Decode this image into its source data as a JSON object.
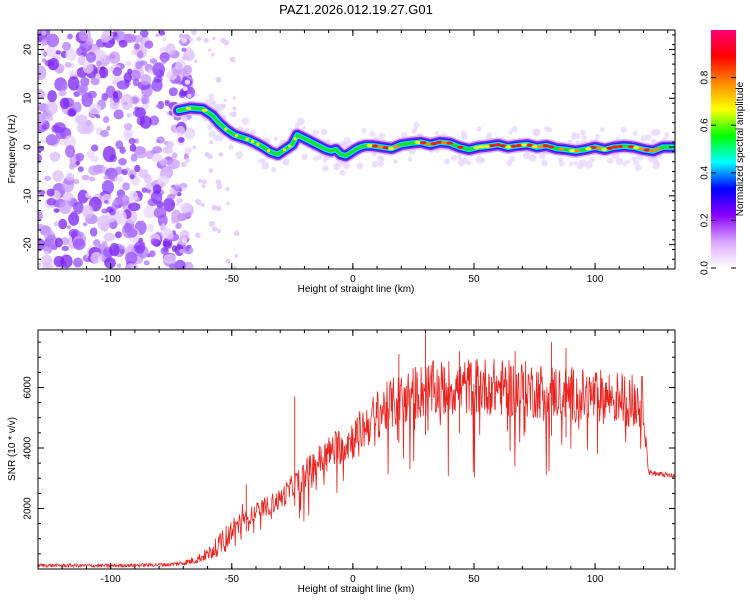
{
  "title": "PAZ1.2026.012.19.27.G01",
  "chart_data": [
    {
      "type": "heatmap",
      "name": "spectrogram",
      "xlabel": "Height of straight line (km)",
      "ylabel": "Frequency (Hz)",
      "xlim": [
        -130,
        133
      ],
      "ylim": [
        -25,
        24
      ],
      "xticks": [
        "-100",
        "-50",
        "0",
        "50",
        "100"
      ],
      "xtick_values": [
        -100,
        -50,
        0,
        50,
        100
      ],
      "yticks": [
        "20",
        "10",
        "0",
        "-10",
        "-20"
      ],
      "ytick_values": [
        20,
        10,
        0,
        -10,
        -20
      ],
      "noise_region_x": [
        -130,
        -70
      ],
      "signal_trace": {
        "x": [
          -72,
          -67,
          -62,
          -58,
          -55,
          -52,
          -49,
          -46,
          -43,
          -40,
          -37,
          -34,
          -31,
          -28,
          -25,
          -23,
          -21,
          -19,
          -17,
          -15,
          -13,
          -11,
          -9,
          -7,
          -5,
          -3,
          -1,
          1,
          3,
          5,
          8,
          12,
          16,
          20,
          24,
          28,
          32,
          36,
          40,
          44,
          48,
          52,
          56,
          60,
          64,
          68,
          72,
          76,
          80,
          84,
          88,
          92,
          96,
          100,
          104,
          108,
          112,
          116,
          120,
          124,
          128,
          132
        ],
        "y": [
          7.5,
          8.0,
          7.8,
          6.5,
          4.8,
          3.5,
          2.5,
          2.0,
          1.5,
          0.8,
          0.0,
          -1.0,
          -1.5,
          -0.5,
          0.5,
          2.5,
          2.0,
          1.5,
          1.0,
          0.5,
          0.0,
          -0.5,
          -0.8,
          -0.5,
          -1.5,
          -1.8,
          -1.2,
          -0.5,
          0.0,
          0.3,
          0.3,
          0.0,
          -0.3,
          0.5,
          0.8,
          1.0,
          0.5,
          1.0,
          0.8,
          0.0,
          -0.5,
          0.0,
          0.2,
          0.5,
          0.0,
          0.3,
          0.5,
          0.0,
          0.3,
          -0.3,
          -0.5,
          -0.8,
          -0.5,
          0.0,
          -0.5,
          0.0,
          0.2,
          0.0,
          -0.5,
          -0.8,
          0.0,
          0.0
        ]
      }
    },
    {
      "type": "line",
      "name": "snr",
      "xlabel": "Height of straight line (km)",
      "ylabel": "SNR (10 * v/v)",
      "xlim": [
        -130,
        133
      ],
      "ylim": [
        0,
        7900
      ],
      "xticks": [
        "-100",
        "-50",
        "0",
        "50",
        "100"
      ],
      "xtick_values": [
        -100,
        -50,
        0,
        50,
        100
      ],
      "yticks": [
        "2000",
        "4000",
        "6000"
      ],
      "ytick_values": [
        2000,
        4000,
        6000
      ],
      "color": "#e8231f",
      "envelope": {
        "x": [
          -130,
          -100,
          -75,
          -70,
          -65,
          -60,
          -55,
          -50,
          -45,
          -40,
          -35,
          -30,
          -25,
          -20,
          -15,
          -10,
          -5,
          0,
          5,
          10,
          15,
          20,
          25,
          30,
          35,
          40,
          45,
          50,
          55,
          60,
          65,
          70,
          75,
          80,
          85,
          90,
          95,
          100,
          105,
          110,
          115,
          120,
          121,
          122,
          125,
          130,
          133
        ],
        "y": [
          120,
          110,
          150,
          200,
          300,
          500,
          800,
          1200,
          1600,
          1900,
          2100,
          2300,
          2700,
          3100,
          3500,
          3800,
          4100,
          4300,
          4700,
          5100,
          5400,
          5600,
          5800,
          5900,
          5950,
          6000,
          6000,
          6050,
          6050,
          6000,
          5950,
          5950,
          5900,
          5900,
          5850,
          5800,
          5700,
          5700,
          5700,
          5650,
          5600,
          5500,
          4500,
          3200,
          3150,
          3100,
          3050
        ]
      },
      "spikes": [
        {
          "x": -24,
          "y": 5700
        },
        {
          "x": -44,
          "y": 2800
        },
        {
          "x": 30,
          "y": 7800
        },
        {
          "x": 82,
          "y": 7500
        },
        {
          "x": 88,
          "y": 7300
        },
        {
          "x": 67,
          "y": 7200
        },
        {
          "x": 44,
          "y": 7200
        },
        {
          "x": 19,
          "y": 7100
        }
      ]
    }
  ],
  "colorbar": {
    "label": "Normalized spectral amplitude",
    "range": [
      0.0,
      1.0
    ],
    "ticks": [
      "0.0",
      "0.2",
      "0.4",
      "0.6",
      "0.8"
    ],
    "tick_values": [
      0.0,
      0.2,
      0.4,
      0.6,
      0.8
    ],
    "colors": [
      "#ffffff",
      "#d9a6ff",
      "#8800ff",
      "#0000ff",
      "#00ffff",
      "#00ff00",
      "#ffff00",
      "#ff8800",
      "#ff0000",
      "#ff0077"
    ]
  }
}
